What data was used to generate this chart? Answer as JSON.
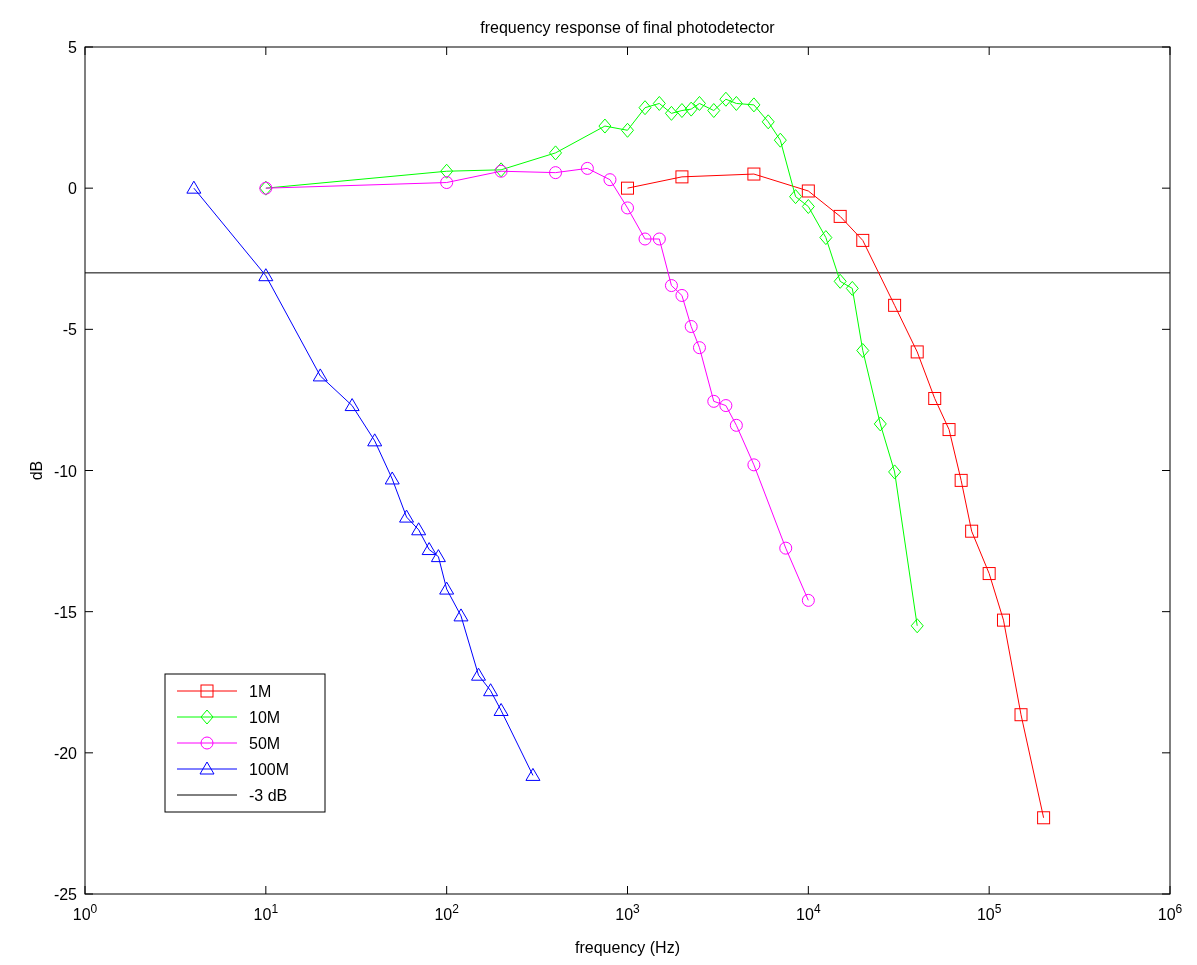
{
  "chart_data": {
    "type": "line",
    "title": "frequency response of final photodetector",
    "xlabel": "frequency (Hz)",
    "ylabel": "dB",
    "log": "x",
    "xlim": [
      1,
      1000000
    ],
    "ylim": [
      -25,
      5
    ],
    "xticks": [
      {
        "value": 1,
        "label": "10$^{0}$"
      },
      {
        "value": 10,
        "label": "10$^{1}$"
      },
      {
        "value": 100,
        "label": "10$^{2}$"
      },
      {
        "value": 1000,
        "label": "10$^{3}$"
      },
      {
        "value": 10000,
        "label": "10$^{4}$"
      },
      {
        "value": 100000,
        "label": "10$^{5}$"
      },
      {
        "value": 1000000,
        "label": "10$^{6}$"
      }
    ],
    "yticks": [
      -25,
      -20,
      -15,
      -10,
      -5,
      0,
      5
    ],
    "grid": false,
    "legend": "bottom left",
    "line_style": "solid",
    "series": [
      {
        "name": "1M",
        "color": "#ff0000",
        "marker": "square",
        "x": [
          1000,
          2000,
          5000,
          10000,
          15000,
          20000,
          30000,
          40000,
          50000,
          60000,
          70000,
          80000,
          100000,
          120000,
          150000,
          200000
        ],
        "values": [
          0,
          0.4,
          0.5,
          -0.1,
          -1.0,
          -1.85,
          -4.15,
          -5.8,
          -7.45,
          -8.55,
          -10.35,
          -12.15,
          -13.65,
          -15.3,
          -18.65,
          -22.3
        ]
      },
      {
        "name": "10M",
        "color": "#00ff00",
        "marker": "diamond",
        "x": [
          10,
          100,
          200,
          400,
          750,
          1000,
          1250,
          1500,
          1750,
          2000,
          2250,
          2500,
          3000,
          3500,
          4000,
          5000,
          6000,
          7000,
          8500,
          10000,
          12500,
          15000,
          17500,
          20000,
          25000,
          30000,
          40000
        ],
        "values": [
          0,
          0.6,
          0.65,
          1.25,
          2.2,
          2.05,
          2.85,
          3.0,
          2.65,
          2.75,
          2.8,
          3.0,
          2.75,
          3.15,
          3.0,
          2.95,
          2.35,
          1.7,
          -0.3,
          -0.65,
          -1.75,
          -3.3,
          -3.55,
          -5.75,
          -8.35,
          -10.05,
          -15.5
        ]
      },
      {
        "name": "50M",
        "color": "#ff00ff",
        "marker": "circle",
        "x": [
          10,
          100,
          200,
          400,
          600,
          800,
          1000,
          1250,
          1500,
          1750,
          2000,
          2250,
          2500,
          3000,
          3500,
          4000,
          5000,
          7500,
          10000
        ],
        "values": [
          0,
          0.2,
          0.6,
          0.55,
          0.7,
          0.3,
          -0.7,
          -1.8,
          -1.8,
          -3.45,
          -3.8,
          -4.9,
          -5.65,
          -7.55,
          -7.7,
          -8.4,
          -9.8,
          -12.75,
          -14.6
        ]
      },
      {
        "name": "100M",
        "color": "#0000ff",
        "marker": "triangle",
        "x": [
          4,
          10,
          20,
          30,
          40,
          50,
          60,
          70,
          80,
          90,
          100,
          120,
          150,
          175,
          200,
          300
        ],
        "values": [
          0,
          -3.1,
          -6.65,
          -7.7,
          -8.95,
          -10.3,
          -11.65,
          -12.1,
          -12.8,
          -13.05,
          -14.2,
          -15.15,
          -17.25,
          -17.8,
          -18.5,
          -20.8
        ]
      }
    ],
    "ref_lines": [
      {
        "axis": "y",
        "value": -3,
        "label": "-3 dB",
        "color": "#000000"
      }
    ]
  }
}
